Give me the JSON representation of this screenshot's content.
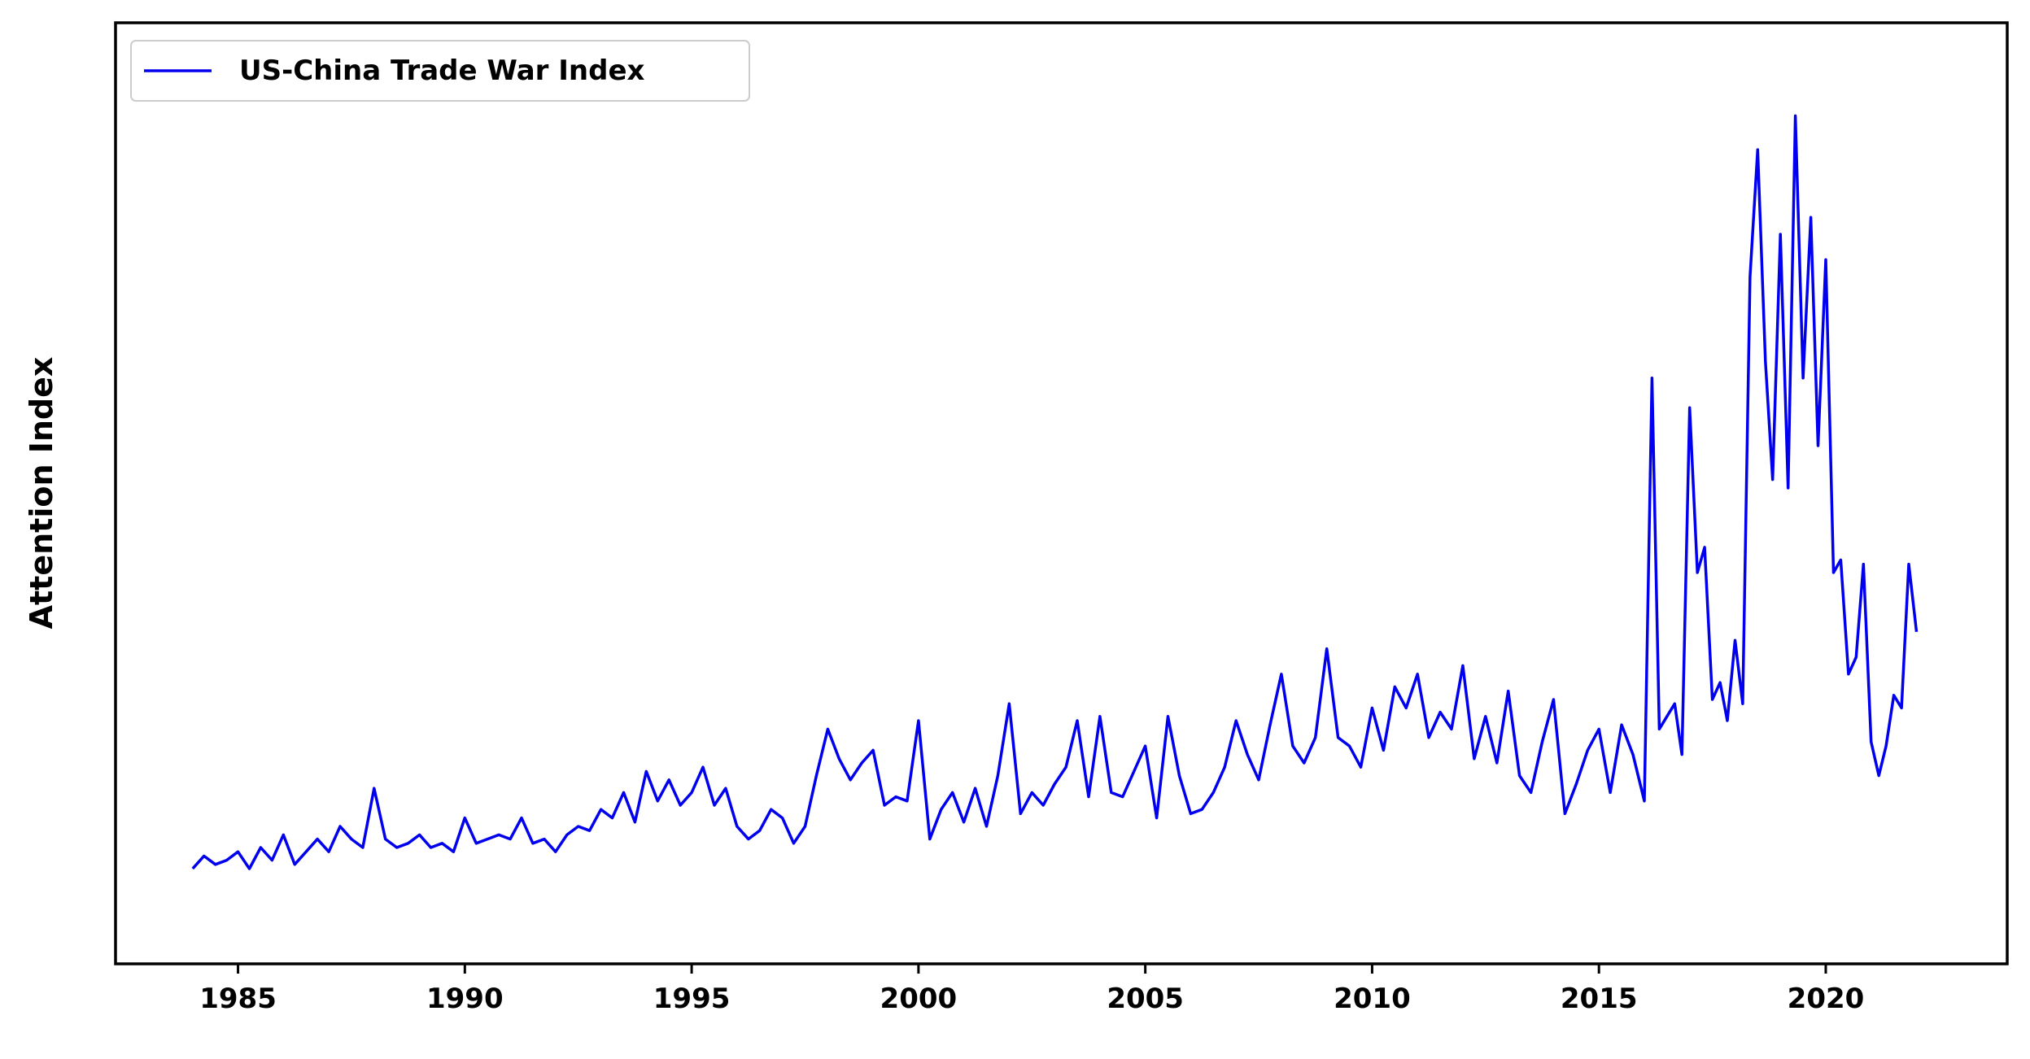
{
  "chart_data": {
    "type": "line",
    "title": "",
    "xlabel": "",
    "ylabel": "Attention Index",
    "y_ticks_visible": false,
    "xlim": [
      1982.3,
      2024.0
    ],
    "ylim": [
      0,
      100
    ],
    "x_ticks": [
      1985,
      1990,
      1995,
      2000,
      2005,
      2010,
      2015,
      2020
    ],
    "grid": false,
    "legend": {
      "position": "top-left"
    },
    "series": [
      {
        "name": "US-China Trade War Index",
        "color": "#0000ee",
        "x": [
          1984.0,
          1984.25,
          1984.5,
          1984.75,
          1985.0,
          1985.25,
          1985.5,
          1985.75,
          1986.0,
          1986.25,
          1986.5,
          1986.75,
          1987.0,
          1987.25,
          1987.5,
          1987.75,
          1988.0,
          1988.25,
          1988.5,
          1988.75,
          1989.0,
          1989.25,
          1989.5,
          1989.75,
          1990.0,
          1990.25,
          1990.5,
          1990.75,
          1991.0,
          1991.25,
          1991.5,
          1991.75,
          1992.0,
          1992.25,
          1992.5,
          1992.75,
          1993.0,
          1993.25,
          1993.5,
          1993.75,
          1994.0,
          1994.25,
          1994.5,
          1994.75,
          1995.0,
          1995.25,
          1995.5,
          1995.75,
          1996.0,
          1996.25,
          1996.5,
          1996.75,
          1997.0,
          1997.25,
          1997.5,
          1997.75,
          1998.0,
          1998.25,
          1998.5,
          1998.75,
          1999.0,
          1999.25,
          1999.5,
          1999.75,
          2000.0,
          2000.25,
          2000.5,
          2000.75,
          2001.0,
          2001.25,
          2001.5,
          2001.75,
          2002.0,
          2002.25,
          2002.5,
          2002.75,
          2003.0,
          2003.25,
          2003.5,
          2003.75,
          2004.0,
          2004.25,
          2004.5,
          2004.75,
          2005.0,
          2005.25,
          2005.5,
          2005.75,
          2006.0,
          2006.25,
          2006.5,
          2006.75,
          2007.0,
          2007.25,
          2007.5,
          2007.75,
          2008.0,
          2008.25,
          2008.5,
          2008.75,
          2009.0,
          2009.25,
          2009.5,
          2009.75,
          2010.0,
          2010.25,
          2010.5,
          2010.75,
          2011.0,
          2011.25,
          2011.5,
          2011.75,
          2012.0,
          2012.25,
          2012.5,
          2012.75,
          2013.0,
          2013.25,
          2013.5,
          2013.75,
          2014.0,
          2014.25,
          2014.5,
          2014.75,
          2015.0,
          2015.25,
          2015.5,
          2015.75,
          2016.0,
          2016.17,
          2016.33,
          2016.5,
          2016.67,
          2016.83,
          2017.0,
          2017.17,
          2017.33,
          2017.5,
          2017.67,
          2017.83,
          2018.0,
          2018.17,
          2018.33,
          2018.5,
          2018.67,
          2018.83,
          2019.0,
          2019.17,
          2019.33,
          2019.5,
          2019.67,
          2019.83,
          2020.0,
          2020.17,
          2020.33,
          2020.5,
          2020.67,
          2020.83,
          2021.0,
          2021.17,
          2021.33,
          2021.5,
          2021.67,
          2021.83,
          2022.0
        ],
        "y": [
          5.0,
          6.5,
          5.5,
          6.0,
          7.0,
          5.0,
          7.5,
          6.0,
          9.0,
          5.5,
          7.0,
          8.5,
          7.0,
          10.0,
          8.5,
          7.5,
          14.5,
          8.5,
          7.5,
          8.0,
          9.0,
          7.5,
          8.0,
          7.0,
          11.0,
          8.0,
          8.5,
          9.0,
          8.5,
          11.0,
          8.0,
          8.5,
          7.0,
          9.0,
          10.0,
          9.5,
          12.0,
          11.0,
          14.0,
          10.5,
          16.5,
          13.0,
          15.5,
          12.5,
          14.0,
          17.0,
          12.5,
          14.5,
          10.0,
          8.5,
          9.5,
          12.0,
          11.0,
          8.0,
          10.0,
          16.0,
          21.5,
          18.0,
          15.5,
          17.5,
          19.0,
          12.5,
          13.5,
          13.0,
          22.5,
          8.5,
          12.0,
          14.0,
          10.5,
          14.5,
          10.0,
          16.0,
          24.5,
          11.5,
          14.0,
          12.5,
          15.0,
          17.0,
          22.5,
          13.5,
          23.0,
          14.0,
          13.5,
          16.5,
          19.5,
          11.0,
          23.0,
          16.0,
          11.5,
          12.0,
          14.0,
          17.0,
          22.5,
          18.5,
          15.5,
          22.0,
          28.0,
          19.5,
          17.5,
          20.5,
          31.0,
          20.5,
          19.5,
          17.0,
          24.0,
          19.0,
          26.5,
          24.0,
          28.0,
          20.5,
          23.5,
          21.5,
          29.0,
          18.0,
          23.0,
          17.5,
          26.0,
          16.0,
          14.0,
          20.0,
          25.0,
          11.5,
          15.0,
          19.0,
          21.5,
          14.0,
          22.0,
          18.5,
          13.0,
          63.0,
          21.5,
          23.0,
          24.5,
          18.5,
          59.5,
          40.0,
          43.0,
          25.0,
          27.0,
          22.5,
          32.0,
          24.5,
          75.0,
          90.0,
          65.0,
          51.0,
          80.0,
          50.0,
          94.0,
          63.0,
          82.0,
          55.0,
          77.0,
          40.0,
          41.5,
          28.0,
          30.0,
          41.0,
          20.0,
          16.0,
          19.5,
          25.5,
          24.0,
          41.0,
          33.0
        ]
      }
    ]
  }
}
